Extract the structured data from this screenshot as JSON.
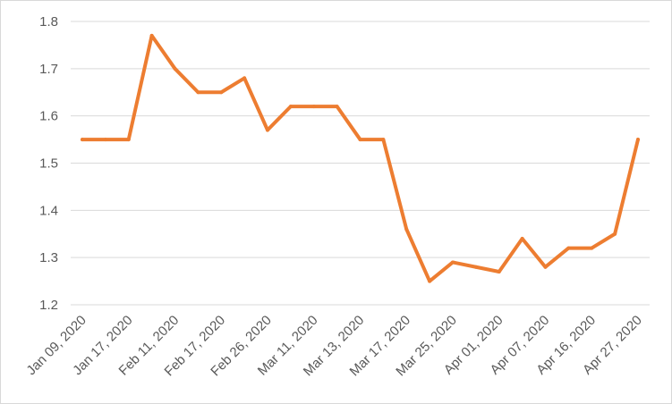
{
  "chart_data": {
    "type": "line",
    "title": "",
    "xlabel": "",
    "ylabel": "",
    "ylim": [
      1.2,
      1.8
    ],
    "yticks": [
      "1.2",
      "1.3",
      "1.4",
      "1.5",
      "1.6",
      "1.7",
      "1.8"
    ],
    "grid": true,
    "legend": "none",
    "line_color": "#ED7D31",
    "x": [
      "Jan 09, 2020",
      "",
      "Jan 17, 2020",
      "",
      "Feb 11, 2020",
      "",
      "Feb 17, 2020",
      "",
      "Feb 26, 2020",
      "",
      "Mar 11, 2020",
      "",
      "Mar 13, 2020",
      "",
      "Mar 17, 2020",
      "",
      "Mar 25, 2020",
      "",
      "Apr 01, 2020",
      "",
      "Apr 07, 2020",
      "",
      "Apr 16, 2020",
      "",
      "Apr 27, 2020"
    ],
    "xticks": [
      "Jan 09, 2020",
      "Jan 17, 2020",
      "Feb 11, 2020",
      "Feb 17, 2020",
      "Feb 26, 2020",
      "Mar 11, 2020",
      "Mar 13, 2020",
      "Mar 17, 2020",
      "Mar 25, 2020",
      "Apr 01, 2020",
      "Apr 07, 2020",
      "Apr 16, 2020",
      "Apr 27, 2020"
    ],
    "values": [
      1.55,
      1.55,
      1.55,
      1.77,
      1.7,
      1.65,
      1.65,
      1.68,
      1.57,
      1.62,
      1.62,
      1.62,
      1.55,
      1.55,
      1.36,
      1.25,
      1.29,
      1.28,
      1.27,
      1.34,
      1.28,
      1.32,
      1.32,
      1.35,
      1.55
    ]
  }
}
